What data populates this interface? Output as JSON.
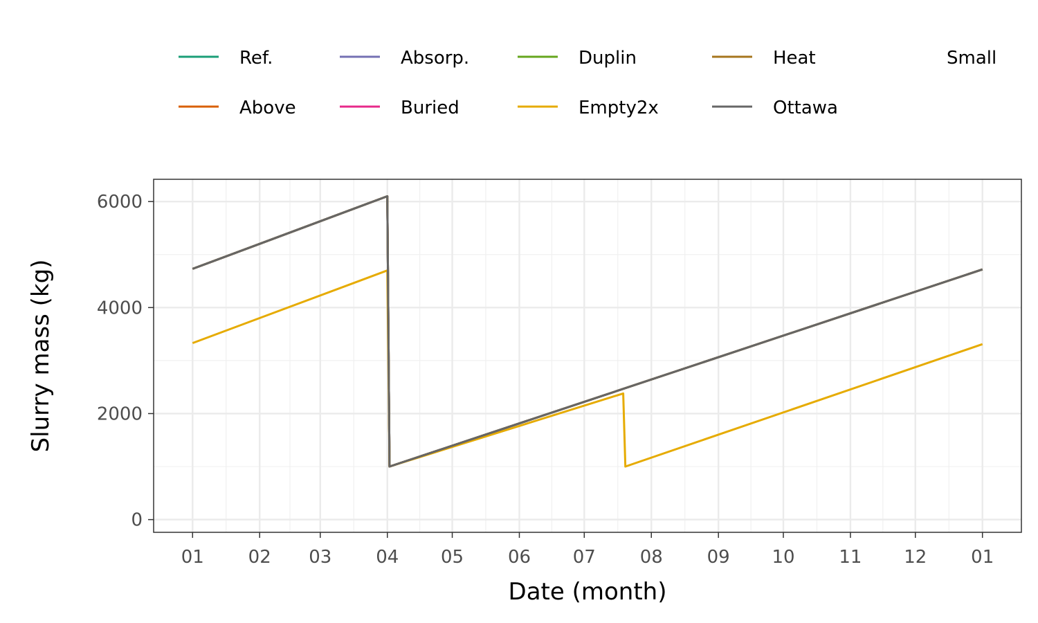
{
  "chart_data": {
    "type": "line",
    "title": "",
    "xlabel": "Date (month)",
    "ylabel": "Slurry mass  (kg)",
    "x_tick_labels": [
      "01",
      "02",
      "03",
      "04",
      "05",
      "06",
      "07",
      "08",
      "09",
      "10",
      "11",
      "12",
      "01"
    ],
    "y_ticks": [
      0,
      2000,
      4000,
      6000
    ],
    "y_tick_labels": [
      "0",
      "2000",
      "4000",
      "6000"
    ],
    "ylim": [
      -240,
      6420
    ],
    "xlim": [
      -18,
      383
    ],
    "x_units": "day of year (0 = Jan 1)",
    "grid": true,
    "legend": {
      "placement": "top",
      "entries": [
        {
          "label": "Ref.",
          "color": "#1B9E77"
        },
        {
          "label": "Above",
          "color": "#D95F02"
        },
        {
          "label": "Absorp.",
          "color": "#7570B3"
        },
        {
          "label": "Buried",
          "color": "#E7298A"
        },
        {
          "label": "Duplin",
          "color": "#66A61E"
        },
        {
          "label": "Empty2x",
          "color": "#E6AB02"
        },
        {
          "label": "Heat",
          "color": "#A6761D"
        },
        {
          "label": "Ottawa",
          "color": "#666666"
        },
        {
          "label": "Small",
          "color": "#ffffff"
        }
      ]
    },
    "series": [
      {
        "name": "Ref.",
        "color": "#1B9E77",
        "points": [
          [
            0,
            4730
          ],
          [
            90,
            6100
          ],
          [
            91,
            1000
          ],
          [
            365,
            4720
          ]
        ]
      },
      {
        "name": "Above",
        "color": "#D95F02",
        "points": [
          [
            0,
            4730
          ],
          [
            90,
            6100
          ],
          [
            91,
            1000
          ],
          [
            365,
            4720
          ]
        ]
      },
      {
        "name": "Absorp.",
        "color": "#7570B3",
        "points": [
          [
            0,
            4730
          ],
          [
            90,
            6100
          ],
          [
            91,
            1000
          ],
          [
            365,
            4720
          ]
        ]
      },
      {
        "name": "Buried",
        "color": "#E7298A",
        "points": [
          [
            0,
            4730
          ],
          [
            90,
            6100
          ],
          [
            91,
            1000
          ],
          [
            365,
            4720
          ]
        ]
      },
      {
        "name": "Duplin",
        "color": "#66A61E",
        "points": [
          [
            0,
            4730
          ],
          [
            90,
            6100
          ],
          [
            91,
            1000
          ],
          [
            365,
            4720
          ]
        ]
      },
      {
        "name": "Empty2x",
        "color": "#E6AB02",
        "points": [
          [
            0,
            3330
          ],
          [
            90,
            4700
          ],
          [
            91,
            1000
          ],
          [
            199,
            2380
          ],
          [
            200,
            1000
          ],
          [
            365,
            3310
          ]
        ]
      },
      {
        "name": "Heat",
        "color": "#A6761D",
        "points": [
          [
            0,
            4730
          ],
          [
            90,
            6100
          ],
          [
            91,
            1000
          ],
          [
            365,
            4720
          ]
        ]
      },
      {
        "name": "Ottawa",
        "color": "#666666",
        "points": [
          [
            0,
            4730
          ],
          [
            90,
            6100
          ],
          [
            91,
            1000
          ],
          [
            365,
            4720
          ]
        ]
      }
    ]
  }
}
